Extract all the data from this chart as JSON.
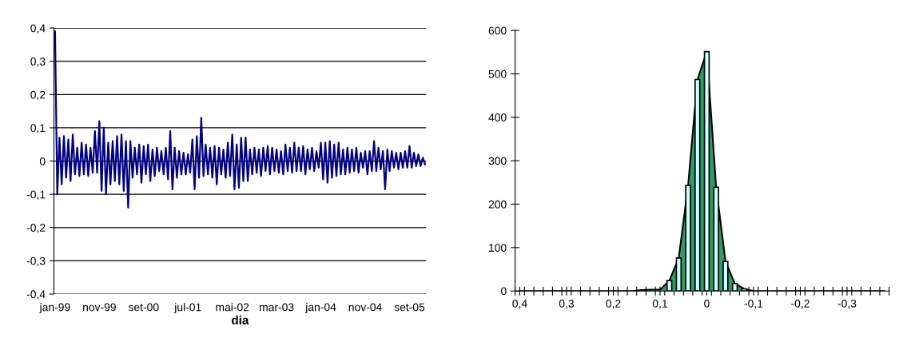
{
  "chart_data": [
    {
      "type": "line",
      "xlabel": "dia",
      "grid": "y",
      "line_style": "solid",
      "marker": "none",
      "categories": [
        "jan-99",
        null,
        null,
        null,
        null,
        null,
        null,
        null,
        null,
        null,
        null,
        null,
        null,
        null,
        null,
        null,
        null,
        null,
        null,
        null,
        "nov-99",
        null,
        null,
        null,
        null,
        null,
        null,
        null,
        null,
        null,
        null,
        null,
        null,
        null,
        null,
        null,
        null,
        null,
        null,
        null,
        "set-00",
        null,
        null,
        null,
        null,
        null,
        null,
        null,
        null,
        null,
        null,
        null,
        null,
        null,
        null,
        null,
        null,
        null,
        null,
        null,
        "jul-01",
        null,
        null,
        null,
        null,
        null,
        null,
        null,
        null,
        null,
        null,
        null,
        null,
        null,
        null,
        null,
        null,
        null,
        null,
        null,
        "mai-02",
        null,
        null,
        null,
        null,
        null,
        null,
        null,
        null,
        null,
        null,
        null,
        null,
        null,
        null,
        null,
        null,
        null,
        null,
        null,
        "mar-03",
        null,
        null,
        null,
        null,
        null,
        null,
        null,
        null,
        null,
        null,
        null,
        null,
        null,
        null,
        null,
        null,
        null,
        null,
        null,
        "jan-04",
        null,
        null,
        null,
        null,
        null,
        null,
        null,
        null,
        null,
        null,
        null,
        null,
        null,
        null,
        null,
        null,
        null,
        null,
        null,
        "nov-04",
        null,
        null,
        null,
        null,
        null,
        null,
        null,
        null,
        null,
        null,
        null,
        null,
        null,
        null,
        null,
        null,
        null,
        null,
        null,
        "set-05",
        null,
        null,
        null,
        null,
        null,
        null,
        null
      ],
      "ylim": [
        -0.4,
        0.4
      ],
      "yticks": [
        {
          "value": -0.4,
          "label": "-0,4"
        },
        {
          "value": -0.3,
          "label": "-0,3"
        },
        {
          "value": -0.2,
          "label": "-0,2"
        },
        {
          "value": -0.1,
          "label": "-0,1"
        },
        {
          "value": 0,
          "label": "0"
        },
        {
          "value": 0.1,
          "label": "0,1"
        },
        {
          "value": 0.2,
          "label": "0,2"
        },
        {
          "value": 0.3,
          "label": "0,3"
        },
        {
          "value": 0.4,
          "label": "0,4"
        }
      ],
      "series": [
        {
          "color": "#000080",
          "values": [
            0.39,
            -0.1,
            0.07,
            -0.07,
            0.075,
            -0.05,
            0.065,
            -0.06,
            0.08,
            -0.04,
            0.04,
            -0.045,
            0.055,
            -0.04,
            0.05,
            -0.045,
            0.04,
            -0.035,
            0.09,
            -0.035,
            0.12,
            -0.09,
            0.1,
            -0.1,
            0.055,
            -0.07,
            0.06,
            -0.06,
            0.075,
            -0.07,
            0.08,
            -0.09,
            0.06,
            -0.14,
            0.06,
            -0.05,
            0.04,
            -0.04,
            0.05,
            -0.065,
            0.045,
            -0.04,
            0.05,
            -0.06,
            0.035,
            -0.045,
            0.04,
            -0.03,
            0.03,
            -0.04,
            0.04,
            -0.055,
            0.09,
            -0.085,
            0.04,
            -0.05,
            0.03,
            -0.04,
            0.025,
            -0.04,
            0.02,
            -0.035,
            0.065,
            -0.085,
            0.075,
            -0.05,
            0.13,
            -0.045,
            0.05,
            -0.04,
            0.04,
            -0.05,
            0.045,
            -0.07,
            0.04,
            -0.04,
            0.035,
            -0.05,
            0.055,
            -0.045,
            0.08,
            -0.085,
            0.05,
            -0.08,
            0.07,
            -0.06,
            0.07,
            -0.06,
            0.035,
            -0.04,
            0.04,
            -0.035,
            0.035,
            -0.045,
            0.04,
            -0.03,
            0.045,
            -0.04,
            0.04,
            -0.03,
            0.035,
            -0.035,
            0.03,
            -0.04,
            0.05,
            -0.03,
            0.04,
            -0.035,
            0.055,
            -0.03,
            0.04,
            -0.03,
            0.045,
            -0.04,
            0.035,
            -0.025,
            0.04,
            -0.03,
            0.03,
            -0.02,
            0.055,
            -0.055,
            0.055,
            -0.065,
            0.06,
            -0.05,
            0.05,
            -0.045,
            0.055,
            -0.04,
            0.035,
            -0.04,
            0.04,
            -0.035,
            0.035,
            -0.03,
            0.04,
            -0.035,
            0.025,
            -0.02,
            0.03,
            -0.04,
            0.03,
            -0.03,
            0.06,
            -0.03,
            0.04,
            -0.025,
            0.03,
            -0.085,
            0.035,
            -0.03,
            0.03,
            -0.02,
            0.025,
            -0.025,
            0.025,
            -0.02,
            0.03,
            -0.02,
            0.045,
            -0.02,
            0.025,
            -0.015,
            0.02,
            -0.015,
            0.01,
            -0.01
          ]
        }
      ]
    },
    {
      "type": "area",
      "grid": false,
      "xlim": [
        0.41,
        -0.39
      ],
      "xticks": [
        {
          "value": 0.4,
          "label": "0,4"
        },
        {
          "value": 0.3,
          "label": "0,3"
        },
        {
          "value": 0.2,
          "label": "0,2"
        },
        {
          "value": 0.1,
          "label": "0,1"
        },
        {
          "value": 0,
          "label": "0"
        },
        {
          "value": -0.1,
          "label": "-0,1"
        },
        {
          "value": -0.2,
          "label": "-0,2"
        },
        {
          "value": -0.3,
          "label": "-0,3"
        },
        {
          "value": 0.41,
          "label": null
        },
        {
          "value": 0.39,
          "label": null
        },
        {
          "value": 0.37,
          "label": null
        },
        {
          "value": 0.35,
          "label": null
        },
        {
          "value": 0.33,
          "label": null
        },
        {
          "value": 0.31,
          "label": null
        },
        {
          "value": 0.29,
          "label": null
        },
        {
          "value": 0.27,
          "label": null
        },
        {
          "value": 0.25,
          "label": null
        },
        {
          "value": 0.23,
          "label": null
        },
        {
          "value": 0.21,
          "label": null
        },
        {
          "value": 0.19,
          "label": null
        },
        {
          "value": 0.17,
          "label": null
        },
        {
          "value": 0.15,
          "label": null
        },
        {
          "value": 0.13,
          "label": null
        },
        {
          "value": 0.11,
          "label": null
        },
        {
          "value": 0.09,
          "label": null
        },
        {
          "value": 0.07,
          "label": null
        },
        {
          "value": 0.05,
          "label": null
        },
        {
          "value": 0.03,
          "label": null
        },
        {
          "value": 0.01,
          "label": null
        },
        {
          "value": -0.01,
          "label": null
        },
        {
          "value": -0.03,
          "label": null
        },
        {
          "value": -0.05,
          "label": null
        },
        {
          "value": -0.07,
          "label": null
        },
        {
          "value": -0.09,
          "label": null
        },
        {
          "value": -0.11,
          "label": null
        },
        {
          "value": -0.13,
          "label": null
        },
        {
          "value": -0.15,
          "label": null
        },
        {
          "value": -0.17,
          "label": null
        },
        {
          "value": -0.19,
          "label": null
        },
        {
          "value": -0.21,
          "label": null
        },
        {
          "value": -0.23,
          "label": null
        },
        {
          "value": -0.25,
          "label": null
        },
        {
          "value": -0.27,
          "label": null
        },
        {
          "value": -0.29,
          "label": null
        },
        {
          "value": -0.31,
          "label": null
        },
        {
          "value": -0.33,
          "label": null
        },
        {
          "value": -0.35,
          "label": null
        },
        {
          "value": -0.37,
          "label": null
        },
        {
          "value": -0.39,
          "label": null
        }
      ],
      "ylim": [
        0,
        600
      ],
      "yticks": [
        0,
        100,
        200,
        300,
        400,
        500,
        600
      ],
      "series": [
        {
          "type": "area",
          "color": "#339966",
          "x": [
            0.4,
            0.16,
            0.14,
            0.12,
            0.1,
            0.08,
            0.06,
            0.04,
            0.02,
            0,
            -0.02,
            -0.04,
            -0.06,
            -0.08,
            -0.1,
            -0.38
          ],
          "values": [
            0,
            0,
            2,
            3,
            3,
            24,
            76,
            243,
            487,
            551,
            239,
            68,
            17,
            5,
            0,
            0
          ]
        },
        {
          "type": "bar",
          "color": "#ccffff",
          "x": [
            0.08,
            0.06,
            0.04,
            0.02,
            0,
            -0.02,
            -0.04,
            -0.06,
            -0.08
          ],
          "values": [
            24,
            76,
            243,
            487,
            551,
            239,
            68,
            17,
            5
          ]
        }
      ]
    }
  ]
}
